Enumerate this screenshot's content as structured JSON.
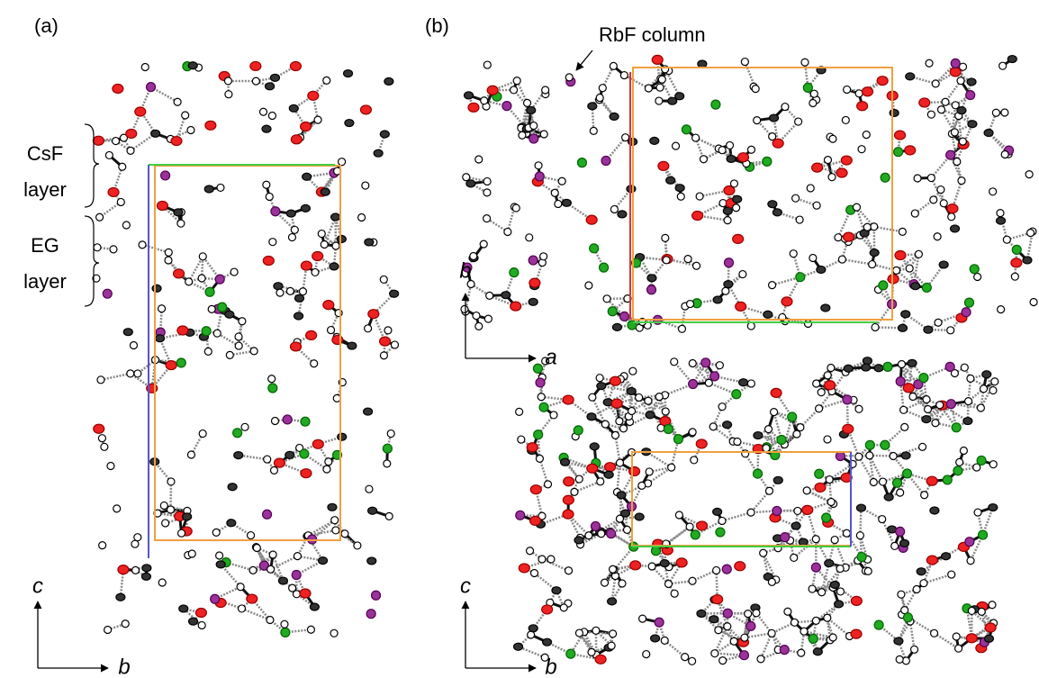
{
  "panel_a": {
    "label": "(a)",
    "annotations": [
      {
        "lines": [
          "CsF",
          "layer"
        ]
      },
      {
        "lines": [
          "EG",
          "layer"
        ]
      }
    ],
    "axes": {
      "vertical": "c",
      "horizontal": "b"
    }
  },
  "panel_b": {
    "label": "(b)",
    "annotation": "RbF column",
    "top_axes": {
      "vertical": "b",
      "horizontal": "a"
    },
    "bottom_axes": {
      "vertical": "c",
      "horizontal": "b"
    }
  }
}
